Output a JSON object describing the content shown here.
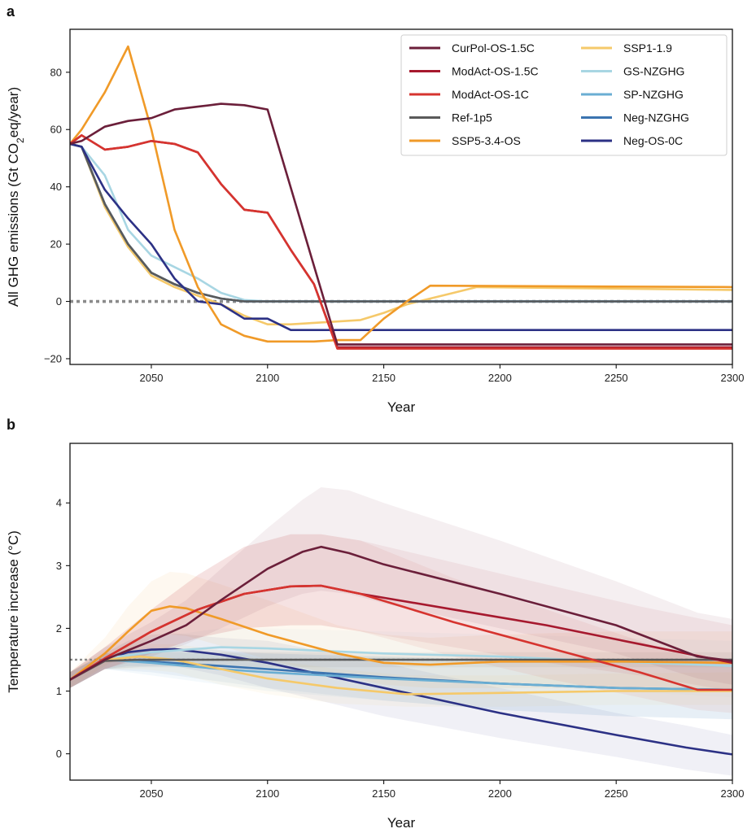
{
  "colors": {
    "CurPol-OS-1.5C": "#6b1f3a",
    "ModAct-OS-1.5C": "#a6192e",
    "ModAct-OS-1C": "#d6342f",
    "Ref-1p5": "#5a5a5a",
    "SSP5-3.4-OS": "#f09a28",
    "SSP1-1.9": "#f5c96a",
    "GS-NZGHG": "#a8d6e3",
    "SP-NZGHG": "#6aaed3",
    "Neg-NZGHG": "#3b74b0",
    "Neg-OS-0C": "#2c3185"
  },
  "chart_data": [
    {
      "type": "line",
      "panel": "a",
      "xlabel": "Year",
      "ylabel_parts": [
        "All GHG emissions (Gt CO",
        "2",
        "eq/year)"
      ],
      "xlim": [
        2015,
        2300
      ],
      "ylim": [
        -22,
        95
      ],
      "xticks": [
        2050,
        2100,
        2150,
        2200,
        2250,
        2300
      ],
      "yticks": [
        -20,
        0,
        20,
        40,
        60,
        80
      ],
      "reference_line": 0,
      "legend": {
        "placement": "top-right",
        "col1": [
          "CurPol-OS-1.5C",
          "ModAct-OS-1.5C",
          "ModAct-OS-1C",
          "Ref-1p5",
          "SSP5-3.4-OS"
        ],
        "col2": [
          "SSP1-1.9",
          "GS-NZGHG",
          "SP-NZGHG",
          "Neg-NZGHG",
          "Neg-OS-0C"
        ]
      },
      "series": [
        {
          "name": "SSP1-1.9",
          "x": [
            2015,
            2020,
            2030,
            2040,
            2050,
            2060,
            2070,
            2080,
            2090,
            2100,
            2110,
            2120,
            2130,
            2140,
            2150,
            2160,
            2170,
            2180,
            2190,
            2300
          ],
          "y": [
            55,
            54,
            33,
            19,
            9,
            5,
            2,
            -1,
            -5,
            -8,
            -8,
            -7.5,
            -7,
            -6.5,
            -4,
            -1,
            1,
            3,
            5,
            4
          ]
        },
        {
          "name": "GS-NZGHG",
          "x": [
            2015,
            2020,
            2030,
            2040,
            2050,
            2060,
            2070,
            2080,
            2090,
            2100,
            2300
          ],
          "y": [
            55,
            54,
            44,
            25,
            16,
            12,
            8,
            3,
            0.5,
            0,
            0
          ]
        },
        {
          "name": "SP-NZGHG",
          "x": [
            2015,
            2020,
            2030,
            2040,
            2050,
            2060,
            2070,
            2080,
            2090,
            2100,
            2300
          ],
          "y": [
            55,
            54,
            34,
            20,
            10,
            6,
            3,
            1,
            0,
            0,
            0
          ]
        },
        {
          "name": "Neg-NZGHG",
          "x": [
            2015,
            2020,
            2030,
            2040,
            2050,
            2060,
            2070,
            2080,
            2090,
            2100,
            2300
          ],
          "y": [
            55,
            54,
            34,
            20,
            10,
            6,
            3,
            1,
            0,
            0,
            0
          ]
        },
        {
          "name": "Ref-1p5",
          "x": [
            2015,
            2020,
            2030,
            2040,
            2050,
            2060,
            2070,
            2080,
            2090,
            2100,
            2300
          ],
          "y": [
            55,
            54,
            34,
            20,
            10,
            6,
            3,
            1,
            0,
            0,
            0
          ]
        },
        {
          "name": "Neg-OS-0C",
          "x": [
            2015,
            2020,
            2030,
            2040,
            2050,
            2060,
            2070,
            2080,
            2090,
            2100,
            2110,
            2300
          ],
          "y": [
            55,
            54,
            39,
            29,
            20,
            8,
            0,
            -1,
            -6,
            -6,
            -10,
            -10
          ]
        },
        {
          "name": "SSP5-3.4-OS",
          "x": [
            2015,
            2020,
            2030,
            2040,
            2050,
            2060,
            2070,
            2080,
            2090,
            2100,
            2120,
            2130,
            2140,
            2150,
            2160,
            2170,
            2300
          ],
          "y": [
            55,
            60,
            73,
            89,
            60,
            25,
            5,
            -8,
            -12,
            -14,
            -14,
            -13.5,
            -13.5,
            -6,
            0,
            5.5,
            5
          ]
        },
        {
          "name": "ModAct-OS-1.5C",
          "x": [
            2015,
            2020,
            2030,
            2040,
            2050,
            2060,
            2070,
            2080,
            2090,
            2100,
            2110,
            2120,
            2130,
            2300
          ],
          "y": [
            55,
            58,
            53,
            54,
            56,
            55,
            52,
            41,
            32,
            31,
            18,
            6,
            -16,
            -16
          ]
        },
        {
          "name": "ModAct-OS-1C",
          "x": [
            2015,
            2020,
            2030,
            2040,
            2050,
            2060,
            2070,
            2080,
            2090,
            2100,
            2110,
            2120,
            2130,
            2300
          ],
          "y": [
            55,
            58,
            53,
            54,
            56,
            55,
            52,
            41,
            32,
            31,
            18,
            6,
            -16.5,
            -16.5
          ]
        },
        {
          "name": "CurPol-OS-1.5C",
          "x": [
            2015,
            2020,
            2030,
            2040,
            2050,
            2060,
            2070,
            2080,
            2090,
            2100,
            2130,
            2300
          ],
          "y": [
            55,
            56,
            61,
            63,
            64,
            67,
            68,
            69,
            68.5,
            67,
            -15,
            -15
          ]
        }
      ]
    },
    {
      "type": "line",
      "panel": "b",
      "xlabel": "Year",
      "ylabel": "Temperature increase (°C)",
      "xlim": [
        2015,
        2300
      ],
      "ylim": [
        -0.42,
        4.95
      ],
      "xticks": [
        2050,
        2100,
        2150,
        2200,
        2250,
        2300
      ],
      "yticks": [
        0,
        1,
        2,
        3,
        4
      ],
      "reference_line": 1.5,
      "series": [
        {
          "name": "Neg-OS-0C",
          "x": [
            2015,
            2030,
            2040,
            2050,
            2060,
            2080,
            2100,
            2150,
            2200,
            2250,
            2280,
            2300
          ],
          "y": [
            1.18,
            1.5,
            1.62,
            1.66,
            1.67,
            1.58,
            1.45,
            1.05,
            0.65,
            0.3,
            0.1,
            -0.01
          ],
          "band_lo": [
            1.05,
            1.35,
            1.4,
            1.4,
            1.4,
            1.25,
            1.05,
            0.6,
            0.25,
            -0.05,
            -0.25,
            -0.35
          ],
          "band_hi": [
            1.3,
            1.6,
            1.8,
            1.9,
            1.92,
            1.85,
            1.8,
            1.45,
            1.05,
            0.65,
            0.45,
            0.3
          ]
        },
        {
          "name": "Neg-NZGHG",
          "x": [
            2015,
            2030,
            2050,
            2080,
            2100,
            2150,
            2200,
            2250,
            2300
          ],
          "y": [
            1.18,
            1.5,
            1.47,
            1.4,
            1.35,
            1.22,
            1.12,
            1.05,
            1.02
          ],
          "band_lo": [
            1.05,
            1.35,
            1.3,
            1.15,
            1.05,
            0.85,
            0.7,
            0.6,
            0.55
          ],
          "band_hi": [
            1.3,
            1.6,
            1.7,
            1.65,
            1.6,
            1.55,
            1.5,
            1.5,
            1.5
          ]
        },
        {
          "name": "SP-NZGHG",
          "x": [
            2015,
            2030,
            2050,
            2080,
            2100,
            2150,
            2200,
            2250,
            2300
          ],
          "y": [
            1.18,
            1.5,
            1.45,
            1.35,
            1.3,
            1.2,
            1.12,
            1.05,
            1.02
          ],
          "band_lo": [
            1.05,
            1.35,
            1.25,
            1.1,
            1.0,
            0.85,
            0.7,
            0.6,
            0.55
          ],
          "band_hi": [
            1.3,
            1.6,
            1.65,
            1.6,
            1.6,
            1.55,
            1.5,
            1.5,
            1.5
          ]
        },
        {
          "name": "GS-NZGHG",
          "x": [
            2015,
            2030,
            2050,
            2080,
            2100,
            2150,
            2200,
            2250,
            2300
          ],
          "y": [
            1.18,
            1.52,
            1.62,
            1.7,
            1.68,
            1.6,
            1.55,
            1.47,
            1.4
          ],
          "band_lo": [
            1.05,
            1.35,
            1.4,
            1.4,
            1.35,
            1.2,
            1.1,
            1.0,
            0.9
          ],
          "band_hi": [
            1.3,
            1.7,
            1.85,
            2.0,
            2.0,
            1.95,
            1.9,
            1.85,
            1.8
          ]
        },
        {
          "name": "SSP1-1.9",
          "x": [
            2015,
            2030,
            2045,
            2060,
            2080,
            2100,
            2130,
            2160,
            2200,
            2250,
            2300
          ],
          "y": [
            1.18,
            1.5,
            1.55,
            1.5,
            1.35,
            1.2,
            1.05,
            0.95,
            0.97,
            1.0,
            1.0
          ],
          "band_lo": [
            1.05,
            1.35,
            1.35,
            1.3,
            1.1,
            0.95,
            0.8,
            0.75,
            0.75,
            0.78,
            0.78
          ],
          "band_hi": [
            1.3,
            1.65,
            1.75,
            1.75,
            1.65,
            1.5,
            1.35,
            1.25,
            1.25,
            1.28,
            1.3
          ]
        },
        {
          "name": "Ref-1p5",
          "x": [
            2015,
            2030,
            2045,
            2100,
            2200,
            2300
          ],
          "y": [
            1.18,
            1.48,
            1.5,
            1.5,
            1.5,
            1.5
          ],
          "band_lo": [
            1.05,
            1.35,
            1.38,
            1.38,
            1.38,
            1.38
          ],
          "band_hi": [
            1.3,
            1.6,
            1.62,
            1.62,
            1.62,
            1.62
          ]
        },
        {
          "name": "SSP5-3.4-OS",
          "x": [
            2015,
            2030,
            2040,
            2050,
            2058,
            2065,
            2080,
            2100,
            2130,
            2150,
            2170,
            2200,
            2250,
            2300
          ],
          "y": [
            1.18,
            1.6,
            1.95,
            2.28,
            2.35,
            2.32,
            2.15,
            1.9,
            1.6,
            1.45,
            1.42,
            1.47,
            1.47,
            1.45
          ],
          "band_lo": [
            1.05,
            1.4,
            1.6,
            1.85,
            1.9,
            1.88,
            1.72,
            1.5,
            1.25,
            1.1,
            1.05,
            1.05,
            1.05,
            1.0
          ],
          "band_hi": [
            1.3,
            1.85,
            2.35,
            2.75,
            2.9,
            2.88,
            2.7,
            2.45,
            2.05,
            1.9,
            1.85,
            1.9,
            1.95,
            1.95
          ]
        },
        {
          "name": "ModAct-OS-1.5C",
          "x": [
            2015,
            2030,
            2050,
            2070,
            2090,
            2110,
            2123,
            2140,
            2180,
            2220,
            2260,
            2300
          ],
          "y": [
            1.18,
            1.52,
            1.95,
            2.3,
            2.55,
            2.67,
            2.68,
            2.55,
            2.3,
            2.05,
            1.75,
            1.45
          ],
          "band_lo": [
            1.05,
            1.35,
            1.6,
            1.85,
            2.0,
            2.05,
            2.05,
            1.95,
            1.7,
            1.45,
            1.25,
            1.0
          ],
          "band_hi": [
            1.3,
            1.7,
            2.3,
            2.85,
            3.3,
            3.5,
            3.5,
            3.4,
            3.05,
            2.7,
            2.35,
            2.05
          ]
        },
        {
          "name": "ModAct-OS-1C",
          "x": [
            2015,
            2030,
            2050,
            2070,
            2090,
            2110,
            2123,
            2140,
            2180,
            2220,
            2260,
            2285,
            2300
          ],
          "y": [
            1.18,
            1.52,
            1.95,
            2.3,
            2.55,
            2.67,
            2.68,
            2.55,
            2.1,
            1.7,
            1.3,
            1.02,
            1.02
          ],
          "band_lo": [
            1.05,
            1.35,
            1.6,
            1.85,
            2.0,
            2.05,
            2.05,
            1.95,
            1.55,
            1.2,
            0.9,
            0.7,
            0.65
          ],
          "band_hi": [
            1.3,
            1.7,
            2.3,
            2.85,
            3.3,
            3.5,
            3.5,
            3.4,
            2.8,
            2.3,
            1.8,
            1.5,
            1.45
          ]
        },
        {
          "name": "CurPol-OS-1.5C",
          "x": [
            2015,
            2030,
            2050,
            2065,
            2080,
            2100,
            2115,
            2123,
            2135,
            2150,
            2200,
            2250,
            2285,
            2300
          ],
          "y": [
            1.18,
            1.5,
            1.8,
            2.05,
            2.45,
            2.95,
            3.22,
            3.3,
            3.2,
            3.02,
            2.55,
            2.05,
            1.55,
            1.48
          ],
          "band_lo": [
            1.05,
            1.35,
            1.55,
            1.75,
            2.0,
            2.35,
            2.55,
            2.6,
            2.55,
            2.4,
            2.0,
            1.6,
            1.2,
            1.1
          ],
          "band_hi": [
            1.3,
            1.7,
            2.1,
            2.45,
            2.95,
            3.6,
            4.05,
            4.25,
            4.2,
            4.0,
            3.4,
            2.75,
            2.25,
            2.15
          ]
        }
      ]
    }
  ]
}
